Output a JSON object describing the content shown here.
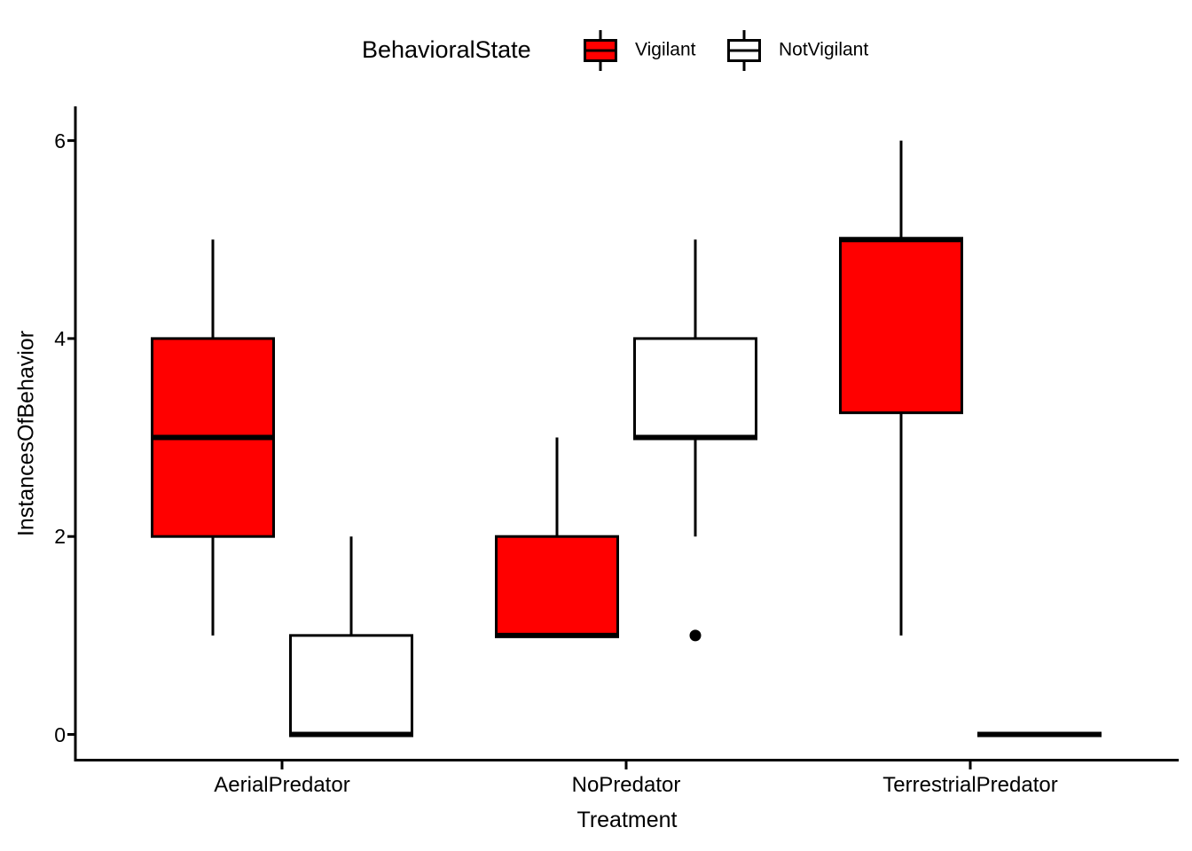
{
  "chart_data": {
    "type": "boxplot",
    "title": "",
    "xlabel": "Treatment",
    "ylabel": "InstancesOfBehavior",
    "ylim": [
      0,
      6
    ],
    "yticks": [
      0,
      2,
      4,
      6
    ],
    "grid": false,
    "categories": [
      "AerialPredator",
      "NoPredator",
      "TerrestrialPredator"
    ],
    "legend": {
      "title": "BehavioralState",
      "position": "top",
      "entries": [
        {
          "label": "Vigilant",
          "fill": "#FF0000"
        },
        {
          "label": "NotVigilant",
          "fill": "#FFFFFF"
        }
      ]
    },
    "colors": {
      "vigilant_fill": "#FF0000",
      "notvigilant_fill": "#FFFFFF",
      "stroke": "#000000",
      "background": "#FFFFFF"
    },
    "series": [
      {
        "name": "Vigilant",
        "fill": "#FF0000",
        "boxes": [
          {
            "category": "AerialPredator",
            "whisker_low": 1,
            "q1": 2,
            "median": 3,
            "q3": 4,
            "whisker_high": 5,
            "outliers": []
          },
          {
            "category": "NoPredator",
            "whisker_low": 1,
            "q1": 1,
            "median": 1,
            "q3": 2,
            "whisker_high": 3,
            "outliers": []
          },
          {
            "category": "TerrestrialPredator",
            "whisker_low": 1,
            "q1": 3.25,
            "median": 5,
            "q3": 5,
            "whisker_high": 6,
            "outliers": []
          }
        ]
      },
      {
        "name": "NotVigilant",
        "fill": "#FFFFFF",
        "boxes": [
          {
            "category": "AerialPredator",
            "whisker_low": 0,
            "q1": 0,
            "median": 0,
            "q3": 1,
            "whisker_high": 2,
            "outliers": []
          },
          {
            "category": "NoPredator",
            "whisker_low": 2,
            "q1": 3,
            "median": 3,
            "q3": 4,
            "whisker_high": 5,
            "outliers": [
              1
            ]
          },
          {
            "category": "TerrestrialPredator",
            "whisker_low": 0,
            "q1": 0,
            "median": 0,
            "q3": 0,
            "whisker_high": 0,
            "outliers": []
          }
        ]
      }
    ]
  }
}
